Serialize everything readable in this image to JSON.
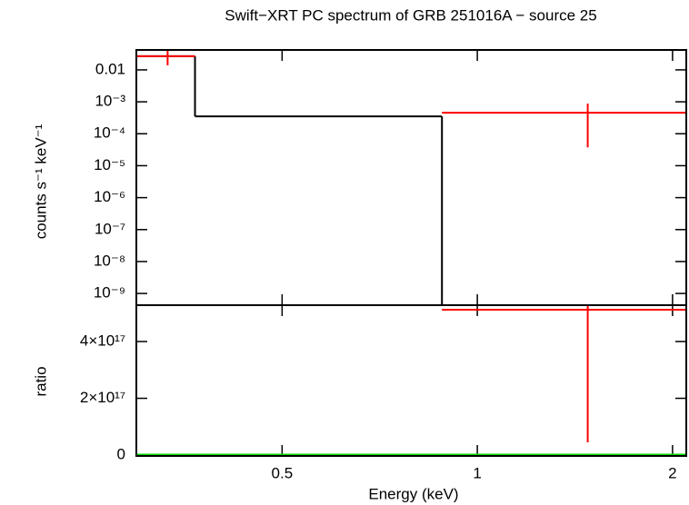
{
  "chart_data": [
    {
      "type": "spectrum",
      "title": "Swift−XRT PC spectrum of GRB 251016A − source 25",
      "ylabel": "counts s⁻¹ keV⁻¹",
      "xscale": "log",
      "yscale": "log",
      "xlim": [
        0.298,
        2.1
      ],
      "ylim": [
        4.3e-10,
        0.042
      ],
      "yticks": [
        {
          "value": 0.01,
          "label": "0.01"
        },
        {
          "value": 0.001,
          "label": "10⁻³"
        },
        {
          "value": 0.0001,
          "label": "10⁻⁴"
        },
        {
          "value": 1e-05,
          "label": "10⁻⁵"
        },
        {
          "value": 1e-06,
          "label": "10⁻⁶"
        },
        {
          "value": 1e-07,
          "label": "10⁻⁷"
        },
        {
          "value": 1e-08,
          "label": "10⁻⁸"
        },
        {
          "value": 1e-09,
          "label": "10⁻⁹"
        }
      ],
      "series": [
        {
          "color": "#ff0000",
          "x_low": [
            0.298,
            0.882
          ],
          "x_high": [
            0.367,
            2.1
          ],
          "x": [
            0.333,
            1.48
          ],
          "values": [
            0.0267,
            0.000455
          ],
          "err_low": [
            0.0139,
            3.74e-05
          ],
          "err_high": [
            0.0398,
            0.00088
          ]
        },
        {
          "color": "#000000",
          "x_low": [
            0.298,
            0.367,
            0.882
          ],
          "x_high": [
            0.367,
            0.882,
            2.1
          ],
          "values": [
            0.0267,
            0.00035,
            4.3e-10
          ]
        }
      ]
    },
    {
      "type": "ratio",
      "xlabel": "Energy (keV)",
      "ylabel": "ratio",
      "xscale": "log",
      "xlim": [
        0.298,
        2.1
      ],
      "ylim": [
        -3000000000000000.0,
        5.28e+17
      ],
      "xticks": [
        0.5,
        1,
        2
      ],
      "yticks": [
        0,
        {
          "value": 2e+17,
          "label": "2×10¹⁷"
        },
        {
          "value": 4e+17,
          "label": "4×10¹⁷"
        }
      ],
      "series": [
        {
          "color": "#ff0000",
          "x_low": [
            0.882
          ],
          "x_high": [
            2.1
          ],
          "x": [
            1.48
          ],
          "values": [
            5.12e+17
          ],
          "err_low": [
            4.5e+16
          ],
          "err_high": [
            5.28e+17
          ]
        }
      ],
      "reference": {
        "color": "#00dd00",
        "value": 1
      }
    }
  ]
}
